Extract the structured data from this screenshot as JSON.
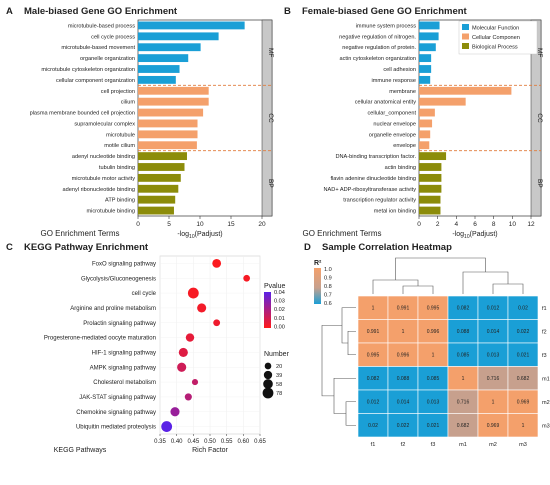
{
  "panels": {
    "A": {
      "letter": "A",
      "title": "Male-biased Gene GO Enrichment"
    },
    "B": {
      "letter": "B",
      "title": "Female-biased Gene GO Enrichment"
    },
    "C": {
      "letter": "C",
      "title": "KEGG Pathway Enrichment"
    },
    "D": {
      "letter": "D",
      "title": "Sample Correlation Heatmap"
    }
  },
  "colors": {
    "mf": "#1a9fd6",
    "cc": "#f4a06b",
    "bp": "#8c8c0a",
    "divider": "#e07a3a",
    "strip": "#c8c8c8",
    "heat_high": "#f4a06b",
    "heat_low": "#1a9fd6",
    "heat_mid": "#c7a08d"
  },
  "chart_data": [
    {
      "type": "bar",
      "orientation": "horizontal",
      "title": "Male-biased Gene GO Enrichment",
      "ylabel": "GO Enrichment Terms",
      "xlabel": "-log10(Padjust)",
      "xlim": [
        0,
        20
      ],
      "xticks": [
        "0",
        "5",
        "10",
        "15",
        "20"
      ],
      "strip_labels": [
        "MF",
        "CC",
        "BP"
      ],
      "categories": [
        "microtubule-based process",
        "cell cycle process",
        "microtubule-based movement",
        "organelle organization",
        "microtubule cytoskeleton organization",
        "cellular component organization",
        "cell projection",
        "cilium",
        "plasma membrane bounded cell projection",
        "supramolecular complex",
        "microtubule",
        "motile cilium",
        "adenyl nucleotide binding",
        "tubulin binding",
        "microtubule motor activity",
        "adenyl ribonucleotide binding",
        "ATP binding",
        "microtubule binding"
      ],
      "groups": [
        "MF",
        "MF",
        "MF",
        "MF",
        "MF",
        "MF",
        "CC",
        "CC",
        "CC",
        "CC",
        "CC",
        "CC",
        "BP",
        "BP",
        "BP",
        "BP",
        "BP",
        "BP"
      ],
      "values": [
        17.2,
        13.0,
        10.1,
        8.1,
        6.7,
        6.1,
        11.4,
        11.4,
        10.5,
        9.6,
        9.6,
        9.5,
        7.9,
        7.5,
        6.9,
        6.5,
        6.0,
        5.8
      ]
    },
    {
      "type": "bar",
      "orientation": "horizontal",
      "title": "Female-biased Gene GO Enrichment",
      "ylabel": "GO Enrichment Terms",
      "xlabel": "-log10(Padjust)",
      "xlim": [
        0,
        12
      ],
      "xticks": [
        "0",
        "2",
        "4",
        "6",
        "8",
        "10",
        "12"
      ],
      "strip_labels": [
        "MF",
        "CC",
        "BP"
      ],
      "legend": [
        "Molecular Function",
        "Cellular Componen",
        "Biological Process"
      ],
      "legend_position": "top-right",
      "categories": [
        "immune system process",
        "negative regulation of nitrogen.",
        "negative regulation of protein.",
        "actin cytoskeleton organization",
        "cell adhesion",
        "immune response",
        "membrane",
        "cellular anatomical entity",
        "cellular_component",
        "nuclear envelope",
        "organelle envelope",
        "envelope",
        "DNA-binding transcription factor.",
        "actin binding",
        "flavin adenine dinucleotide binding",
        "NAD+ ADP-ribosyltransferase activity",
        "transcription regulator activity",
        "metal ion binding"
      ],
      "groups": [
        "MF",
        "MF",
        "MF",
        "MF",
        "MF",
        "MF",
        "CC",
        "CC",
        "CC",
        "CC",
        "CC",
        "CC",
        "BP",
        "BP",
        "BP",
        "BP",
        "BP",
        "BP"
      ],
      "values": [
        2.2,
        2.1,
        1.8,
        1.3,
        1.3,
        1.2,
        9.9,
        5.0,
        1.7,
        1.4,
        1.2,
        1.1,
        2.9,
        2.4,
        2.4,
        2.4,
        2.3,
        2.3
      ]
    },
    {
      "type": "scatter",
      "title": "KEGG Pathway Enrichment",
      "xlabel": "Rich Factor",
      "ylabel": "KEGG Pathways",
      "xlim": [
        0.35,
        0.65
      ],
      "xticks": [
        "0.35",
        "0.40",
        "0.45",
        "0.50",
        "0.55",
        "0.60",
        "0.65"
      ],
      "categories": [
        "FoxO signaling pathway",
        "Glycolysis/Gluconeogenesis",
        "cell cycle",
        "Arginine and proline metabolism",
        "Prolactin signaling pathway",
        "Progesterone-mediated oocyte maturation",
        "HIF-1 signaling pathway",
        "AMPK signaling pathway",
        "Cholesterol metabolism",
        "JAK-STAT signaling pathway",
        "Chemokine signaling pathway",
        "Ubiquitin mediated proteolysis"
      ],
      "x": [
        0.52,
        0.61,
        0.45,
        0.475,
        0.52,
        0.44,
        0.42,
        0.415,
        0.455,
        0.435,
        0.395,
        0.37
      ],
      "pvalue": [
        0.001,
        0.002,
        0.002,
        0.003,
        0.004,
        0.006,
        0.008,
        0.012,
        0.015,
        0.018,
        0.025,
        0.04
      ],
      "number": [
        45,
        20,
        78,
        50,
        22,
        40,
        50,
        50,
        15,
        25,
        50,
        78
      ],
      "legend_pvalue_title": "Pvalue",
      "legend_pvalue_ticks": [
        "0.04",
        "0.03",
        "0.02",
        "0.01",
        "0.00"
      ],
      "legend_number_title": "Number",
      "legend_number_values": [
        20,
        39,
        58,
        78
      ]
    },
    {
      "type": "heatmap",
      "title": "Sample Correlation Heatmap",
      "legend_title": "R²",
      "legend_ticks": [
        "1.0",
        "0.9",
        "0.8",
        "0.7",
        "0.6"
      ],
      "rows": [
        "f1",
        "f2",
        "f3",
        "m1",
        "m2",
        "m3"
      ],
      "columns": [
        "f1",
        "f2",
        "f3",
        "m1",
        "m2",
        "m3"
      ],
      "values": [
        [
          "1",
          "0.991",
          "0.995",
          "0.082",
          "0.012",
          "0.02"
        ],
        [
          "0.991",
          "1",
          "0.996",
          "0.088",
          "0.014",
          "0.022"
        ],
        [
          "0.995",
          "0.996",
          "1",
          "0.085",
          "0.013",
          "0.021"
        ],
        [
          "0.082",
          "0.088",
          "0.085",
          "1",
          "0.716",
          "0.682"
        ],
        [
          "0.012",
          "0.014",
          "0.013",
          "0.716",
          "1",
          "0.969"
        ],
        [
          "0.02",
          "0.022",
          "0.021",
          "0.682",
          "0.969",
          "1"
        ]
      ]
    }
  ]
}
